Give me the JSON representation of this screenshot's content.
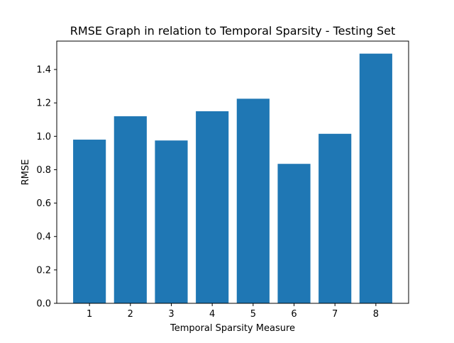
{
  "chart_data": {
    "type": "bar",
    "title": "RMSE Graph in relation to Temporal Sparsity - Testing Set",
    "xlabel": "Temporal Sparsity Measure",
    "ylabel": "RMSE",
    "categories": [
      "1",
      "2",
      "3",
      "4",
      "5",
      "6",
      "7",
      "8"
    ],
    "values": [
      0.98,
      1.12,
      0.975,
      1.15,
      1.225,
      0.835,
      1.015,
      1.495
    ],
    "ylim": [
      0,
      1.57
    ],
    "yticks": [
      0.0,
      0.2,
      0.4,
      0.6,
      0.8,
      1.0,
      1.2,
      1.4
    ],
    "ytick_labels": [
      "0.0",
      "0.2",
      "0.4",
      "0.6",
      "0.8",
      "1.0",
      "1.2",
      "1.4"
    ],
    "bar_color": "#1f77b4",
    "grid": false,
    "legend": "none"
  }
}
